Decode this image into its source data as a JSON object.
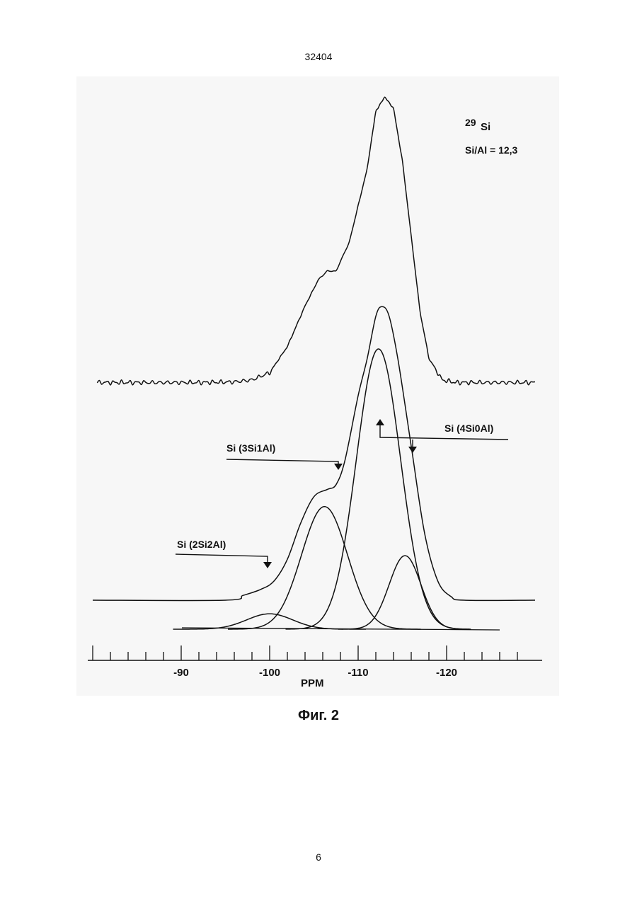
{
  "page": {
    "number_top": "32404",
    "number_bottom": "6",
    "caption": "Фиг. 2"
  },
  "chart_data": {
    "type": "line",
    "title": "",
    "xlabel": "PPM",
    "ylabel": "",
    "xlim": [
      -80,
      -130
    ],
    "x_reversed": true,
    "grid": false,
    "ticks": [
      -90,
      -100,
      -110,
      -120
    ],
    "tick_labels": [
      "-90",
      "-100",
      "-110",
      "-120"
    ],
    "nucleus_mass": "29",
    "nucleus_symbol": "Si",
    "ratio_label": "Si/Al = 12,3",
    "series": [
      {
        "role": "experimental",
        "points": [
          [
            -80.5,
            1.6
          ],
          [
            -92,
            1.6
          ],
          [
            -96,
            1.8
          ],
          [
            -98,
            2.5
          ],
          [
            -100,
            5
          ],
          [
            -102,
            14
          ],
          [
            -104,
            28
          ],
          [
            -105.5,
            37
          ],
          [
            -106.5,
            40
          ],
          [
            -107.5,
            40
          ],
          [
            -109,
            50
          ],
          [
            -111,
            75
          ],
          [
            -112,
            95
          ],
          [
            -113,
            100
          ],
          [
            -114,
            96
          ],
          [
            -115,
            78
          ],
          [
            -116,
            52
          ],
          [
            -117,
            26
          ],
          [
            -118,
            10
          ],
          [
            -119.5,
            2.5
          ],
          [
            -121,
            1.6
          ],
          [
            -130,
            1.6
          ]
        ]
      },
      {
        "role": "fitted-envelope",
        "points": [
          [
            -80,
            0
          ],
          [
            -95,
            0
          ],
          [
            -97,
            2
          ],
          [
            -99,
            4.5
          ],
          [
            -100.5,
            8
          ],
          [
            -102,
            17
          ],
          [
            -103.5,
            32
          ],
          [
            -105,
            43
          ],
          [
            -106.5,
            46
          ],
          [
            -107.5,
            48
          ],
          [
            -108.5,
            58
          ],
          [
            -110,
            85
          ],
          [
            -111,
            100
          ],
          [
            -112,
            118
          ],
          [
            -112.7,
            122
          ],
          [
            -113.5,
            118
          ],
          [
            -114.5,
            100
          ],
          [
            -116,
            64
          ],
          [
            -117.5,
            28
          ],
          [
            -119,
            8
          ],
          [
            -120.5,
            1.5
          ],
          [
            -122,
            0
          ],
          [
            -130,
            0
          ]
        ]
      }
    ],
    "components": [
      {
        "name": "Si (2Si2Al)",
        "center": -100,
        "height": 4.4,
        "width": 2.6
      },
      {
        "name": "Si (3Si1Al)",
        "center": -106.2,
        "height": 35,
        "width": 2.6
      },
      {
        "name": "Si (4Si0Al)",
        "center": -112.3,
        "height": 80,
        "width": 2.5
      },
      {
        "name": "",
        "center": -115.3,
        "height": 21,
        "width": 1.8
      }
    ],
    "annotations": [
      {
        "text": "Si (2Si2Al)",
        "target_ppm": -100
      },
      {
        "text": "Si (3Si1Al)",
        "target_ppm": -107.5
      },
      {
        "text": "Si (4Si0Al)",
        "target_ppm": -112.3
      }
    ]
  }
}
